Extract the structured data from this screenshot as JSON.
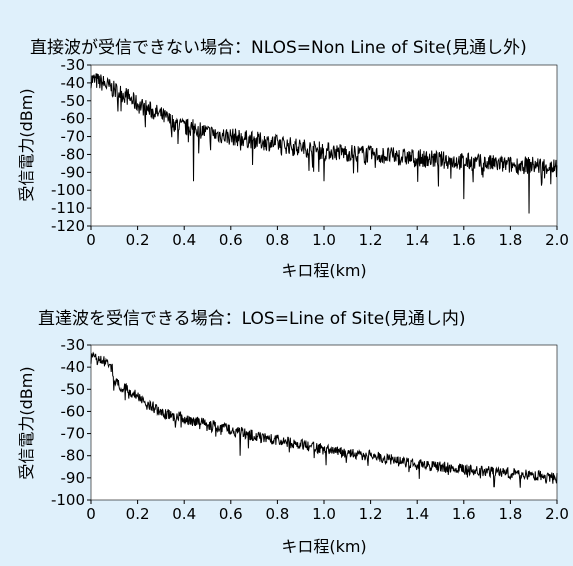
{
  "chart_data": [
    {
      "type": "line",
      "title": "直接波が受信できない場合：NLOS=Non Line of Site(見通し外)",
      "xlabel": "キロ程(km)",
      "ylabel": "受信電力(dBm)",
      "xlim": [
        0,
        2.0
      ],
      "ylim": [
        -120,
        -30
      ],
      "x_ticks": [
        "0",
        "0.2",
        "0.4",
        "0.6",
        "0.8",
        "1.0",
        "1.2",
        "1.4",
        "1.6",
        "1.8",
        "2.0"
      ],
      "y_ticks": [
        "-30",
        "-40",
        "-50",
        "-60",
        "-70",
        "-80",
        "-90",
        "-100",
        "-110",
        "-120"
      ],
      "grid": false,
      "series": [
        {
          "x": [
            0,
            0.05,
            0.1,
            0.15,
            0.2,
            0.25,
            0.3,
            0.35,
            0.4,
            0.45,
            0.5,
            0.6,
            0.7,
            0.8,
            0.9,
            1.0,
            1.1,
            1.2,
            1.3,
            1.4,
            1.5,
            1.6,
            1.7,
            1.8,
            1.9,
            2.0
          ],
          "y": [
            -38,
            -40,
            -44,
            -47,
            -52,
            -55,
            -58,
            -62,
            -65,
            -65,
            -68,
            -70,
            -72,
            -74,
            -76,
            -78,
            -79,
            -80,
            -81,
            -82,
            -83,
            -84,
            -85,
            -86,
            -86,
            -87
          ],
          "noise": 5,
          "min_dips": [
            {
              "x": 0.44,
              "y": -95
            },
            {
              "x": 1.88,
              "y": -113
            },
            {
              "x": 1.6,
              "y": -105
            },
            {
              "x": 1.0,
              "y": -95
            }
          ]
        }
      ]
    },
    {
      "type": "line",
      "title": "直達波を受信できる場合：LOS=Line of Site(見通し内)",
      "xlabel": "キロ程(km)",
      "ylabel": "受信電力(dBm)",
      "xlim": [
        0,
        2.0
      ],
      "ylim": [
        -100,
        -30
      ],
      "x_ticks": [
        "0",
        "0.2",
        "0.4",
        "0.6",
        "0.8",
        "1.0",
        "1.2",
        "1.4",
        "1.6",
        "1.8",
        "2.0"
      ],
      "y_ticks": [
        "-30",
        "-40",
        "-50",
        "-60",
        "-70",
        "-80",
        "-90",
        "-100"
      ],
      "grid": false,
      "series": [
        {
          "x": [
            0,
            0.05,
            0.09,
            0.1,
            0.15,
            0.2,
            0.25,
            0.3,
            0.35,
            0.4,
            0.5,
            0.6,
            0.7,
            0.8,
            0.9,
            1.0,
            1.1,
            1.2,
            1.3,
            1.4,
            1.5,
            1.6,
            1.7,
            1.8,
            1.9,
            2.0
          ],
          "y": [
            -36,
            -37,
            -40,
            -47,
            -50,
            -53,
            -57,
            -60,
            -62,
            -63,
            -66,
            -68,
            -71,
            -73,
            -75,
            -77,
            -79,
            -80,
            -82,
            -84,
            -85,
            -86,
            -87,
            -88,
            -89,
            -90
          ],
          "noise": 2.5,
          "min_dips": [
            {
              "x": 0.64,
              "y": -80
            },
            {
              "x": 1.73,
              "y": -94
            }
          ]
        }
      ]
    }
  ]
}
